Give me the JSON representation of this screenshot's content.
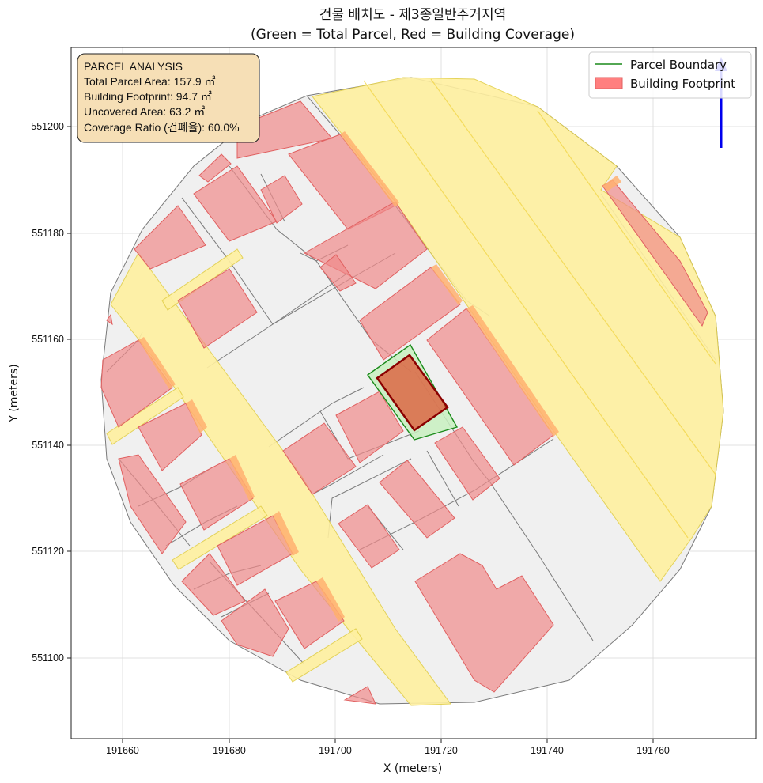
{
  "title_line1": "건물 배치도 - 제3종일반주거지역",
  "title_line2": "(Green = Total Parcel, Red = Building Coverage)",
  "xlabel": "X (meters)",
  "ylabel": "Y (meters)",
  "x_ticks": [
    "191660",
    "191680",
    "191700",
    "191720",
    "191740",
    "191760"
  ],
  "y_ticks": [
    "551100",
    "551120",
    "551140",
    "551160",
    "551180",
    "551200"
  ],
  "legend": {
    "parcel_boundary": "Parcel Boundary",
    "building_footprint": "Building Footprint",
    "placement": "top-right"
  },
  "info_box": {
    "title": "PARCEL ANALYSIS",
    "total_area": "Total Parcel Area: 157.9 ㎡",
    "building_footprint": "Building Footprint: 94.7 ㎡",
    "uncovered_area": "Uncovered Area: 63.2 ㎡",
    "coverage_ratio": "Coverage Ratio (건폐율): 60.0%"
  },
  "colors": {
    "parcel_green": "#22aa22",
    "building_red": "#cc2222",
    "context_parcel": "#f0f0f0",
    "road": "#fff0a0",
    "context_building": "#f08a8a",
    "info_box_bg": "#f6dfb6",
    "north_arrow": "#0000ee"
  },
  "chart_data": {
    "type": "map",
    "xlim": [
      191650,
      191779
    ],
    "ylim": [
      551086,
      551215
    ],
    "grid": true,
    "target_parcel": [
      [
        191705,
        551153
      ],
      [
        191714,
        551159
      ],
      [
        191723,
        551147
      ],
      [
        191714,
        551141
      ]
    ],
    "target_building": [
      [
        191707.5,
        551153
      ],
      [
        191714,
        551157.5
      ],
      [
        191720.8,
        551147.3
      ],
      [
        191714.5,
        551142.8
      ]
    ],
    "stats": {
      "total_parcel_area_m2": 157.9,
      "building_footprint_m2": 94.7,
      "uncovered_area_m2": 63.2,
      "coverage_ratio_pct": 60.0
    }
  }
}
